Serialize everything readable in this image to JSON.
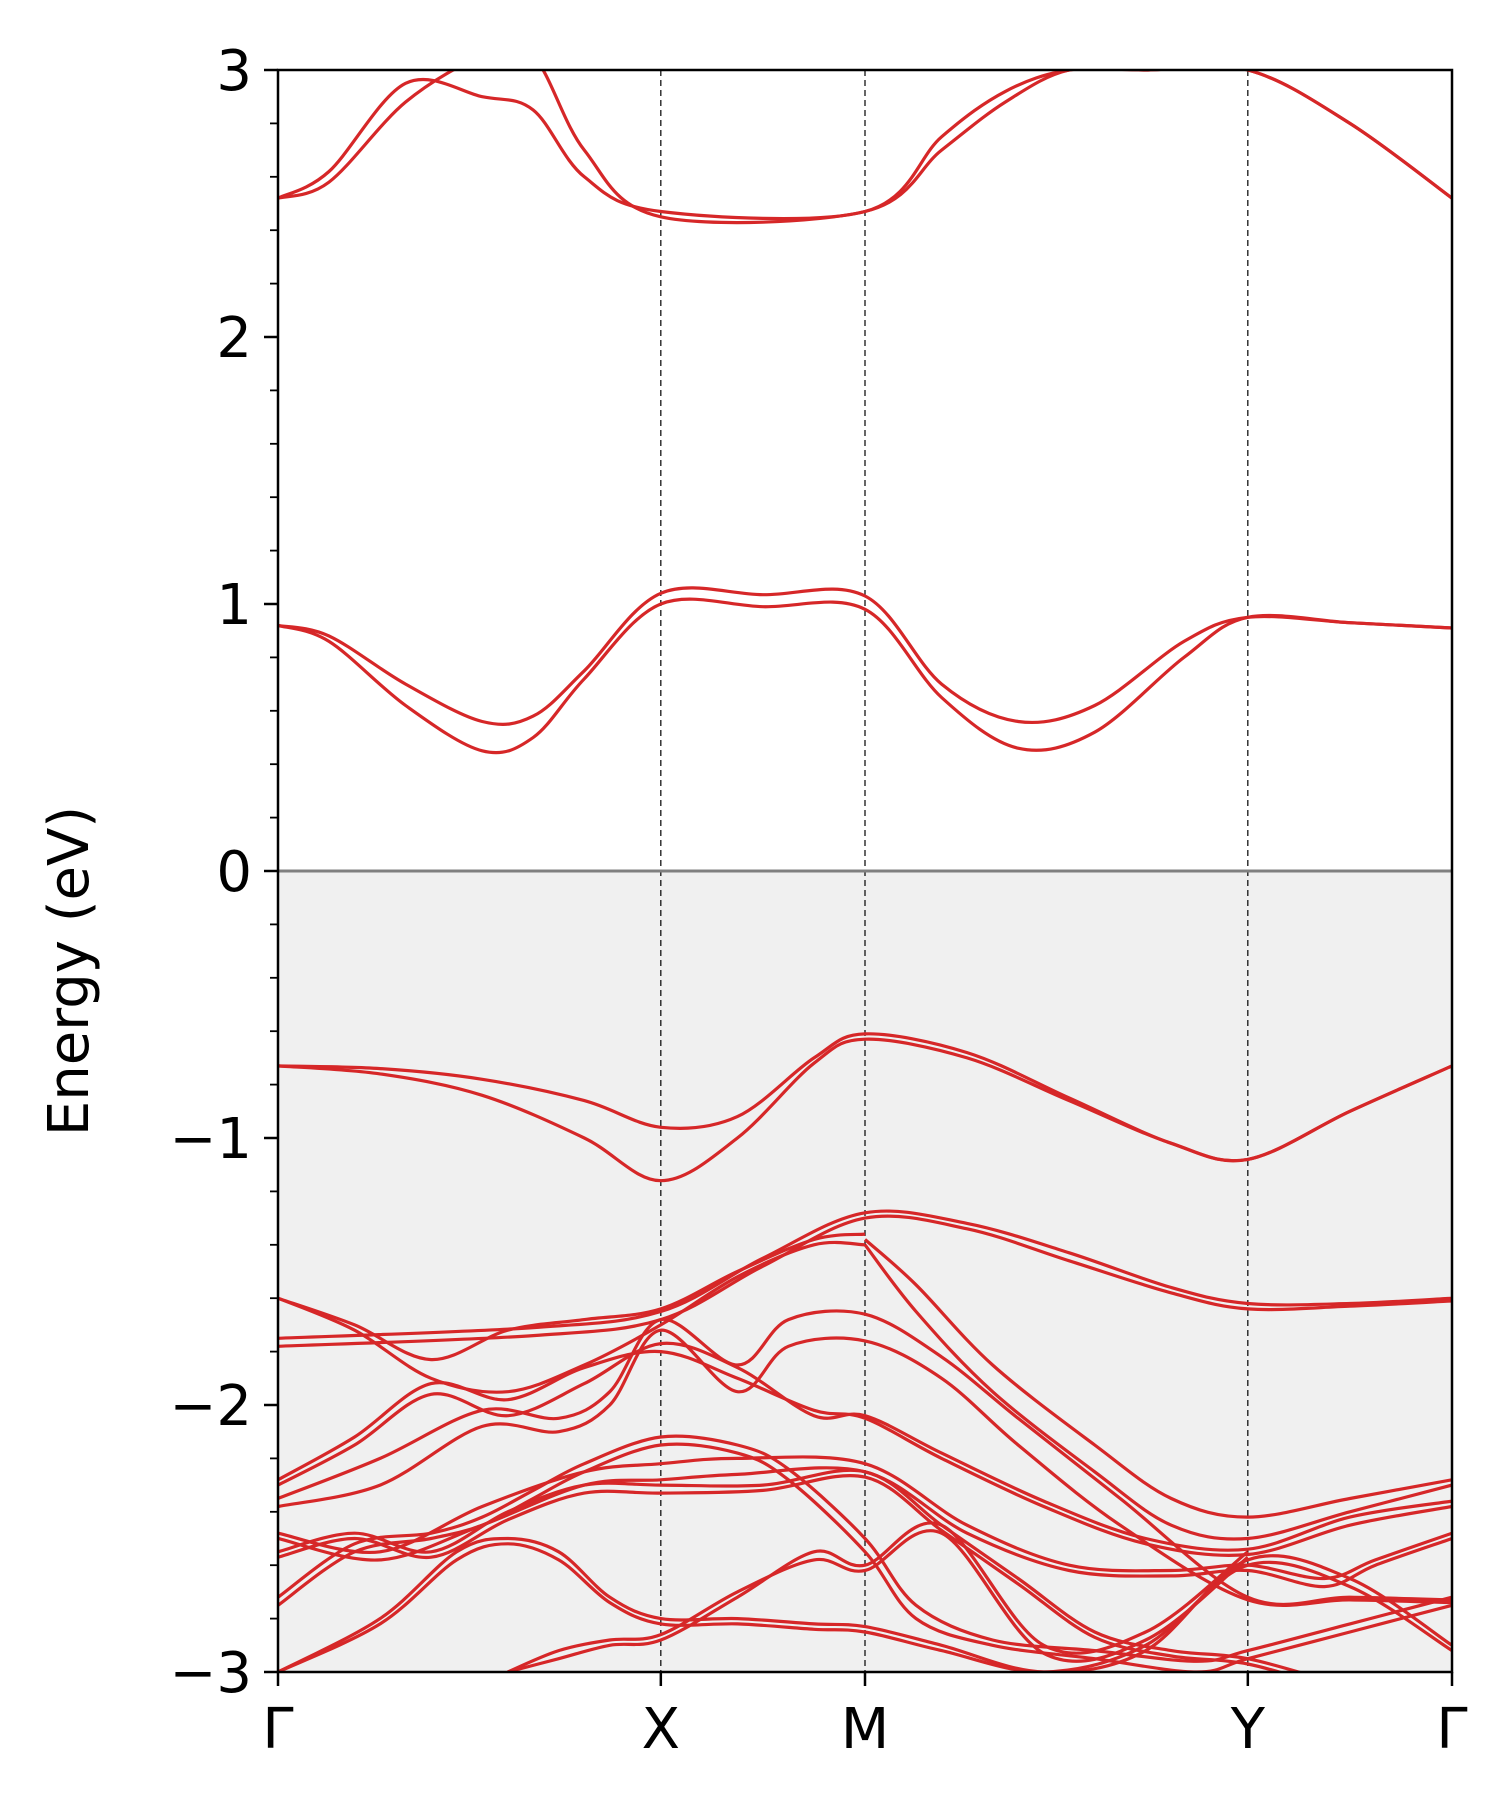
{
  "chart_data": {
    "type": "line",
    "title": "",
    "ylabel": "Energy (eV)",
    "xlabel": "",
    "ylim": [
      -3,
      3
    ],
    "xlim": [
      0,
      4.6
    ],
    "yticks": [
      -3,
      -2,
      -1,
      0,
      1,
      2,
      3
    ],
    "ytick_labels": [
      "−3",
      "−2",
      "−1",
      "0",
      "1",
      "2",
      "3"
    ],
    "yminor_step": 0.2,
    "high_symmetry_points": [
      {
        "label": "Γ",
        "x": 0
      },
      {
        "label": "X",
        "x": 1.5
      },
      {
        "label": "M",
        "x": 2.3
      },
      {
        "label": "Y",
        "x": 3.8
      },
      {
        "label": "Γ",
        "x": 4.6
      }
    ],
    "fermi_level": 0,
    "grid": false,
    "legend": "none",
    "colors": {
      "bands": "#d62728",
      "fermi_line": "#808080",
      "occupied_shade": "#f0f0f0",
      "kpath_lines": "#000000"
    },
    "series": [
      {
        "x": [
          0,
          0.2,
          0.5,
          0.8,
          1.0,
          1.2,
          1.5,
          2.3,
          2.6,
          2.85,
          3.1,
          3.4,
          3.8,
          4.2,
          4.6
        ],
        "y": [
          2.52,
          2.62,
          2.95,
          2.9,
          2.85,
          2.6,
          2.47,
          2.47,
          2.75,
          2.92,
          3.0,
          3.0,
          3.0,
          2.8,
          2.52
        ]
      },
      {
        "x": [
          0,
          0.2,
          0.5,
          0.8,
          1.0,
          1.2,
          1.5,
          2.3,
          2.6,
          2.85,
          3.1,
          3.4,
          3.8,
          4.2,
          4.6
        ],
        "y": [
          2.52,
          2.58,
          2.88,
          3.05,
          3.05,
          2.7,
          2.45,
          2.47,
          2.7,
          2.88,
          3.0,
          3.0,
          3.0,
          2.8,
          2.52
        ]
      },
      {
        "x": [
          0,
          0.2,
          0.5,
          0.8,
          1.0,
          1.2,
          1.5,
          1.9,
          2.3,
          2.6,
          2.9,
          3.2,
          3.55,
          3.8,
          4.2,
          4.6
        ],
        "y": [
          0.92,
          0.86,
          0.62,
          0.45,
          0.5,
          0.72,
          1.0,
          0.99,
          0.98,
          0.65,
          0.46,
          0.52,
          0.8,
          0.95,
          0.93,
          0.91
        ]
      },
      {
        "x": [
          0,
          0.2,
          0.5,
          0.8,
          1.0,
          1.2,
          1.5,
          1.9,
          2.3,
          2.6,
          2.9,
          3.2,
          3.55,
          3.8,
          4.2,
          4.6
        ],
        "y": [
          0.92,
          0.88,
          0.7,
          0.56,
          0.58,
          0.75,
          1.04,
          1.035,
          1.03,
          0.7,
          0.56,
          0.62,
          0.86,
          0.95,
          0.93,
          0.91
        ]
      },
      {
        "x": [
          0,
          0.4,
          0.8,
          1.2,
          1.5,
          1.8,
          2.1,
          2.3,
          2.7,
          3.1,
          3.5,
          3.8,
          4.2,
          4.6
        ],
        "y": [
          -0.73,
          -0.74,
          -0.78,
          -0.86,
          -0.96,
          -0.92,
          -0.7,
          -0.61,
          -0.68,
          -0.85,
          -1.02,
          -1.08,
          -0.9,
          -0.73
        ]
      },
      {
        "x": [
          0,
          0.4,
          0.8,
          1.2,
          1.5,
          1.8,
          2.1,
          2.3,
          2.7,
          3.1,
          3.5,
          3.8,
          4.2,
          4.6
        ],
        "y": [
          -0.73,
          -0.76,
          -0.84,
          -1.0,
          -1.16,
          -1.0,
          -0.72,
          -0.63,
          -0.7,
          -0.86,
          -1.02,
          -1.08,
          -0.9,
          -0.73
        ]
      },
      {
        "x": [
          0,
          1.0,
          1.5,
          1.9,
          2.3,
          2.7,
          3.1,
          3.5,
          3.8,
          4.2,
          4.6
        ],
        "y": [
          -1.75,
          -1.71,
          -1.65,
          -1.45,
          -1.28,
          -1.32,
          -1.43,
          -1.56,
          -1.62,
          -1.62,
          -1.6
        ]
      },
      {
        "x": [
          0,
          1.0,
          1.5,
          1.9,
          2.3,
          2.7,
          3.1,
          3.5,
          3.8,
          4.2,
          4.6
        ],
        "y": [
          -1.78,
          -1.74,
          -1.68,
          -1.48,
          -1.3,
          -1.34,
          -1.46,
          -1.58,
          -1.64,
          -1.63,
          -1.61
        ]
      },
      {
        "x": [
          0,
          0.3,
          0.6,
          0.9,
          1.2,
          1.5,
          1.8,
          2.1,
          2.3
        ],
        "y": [
          -1.6,
          -1.7,
          -1.83,
          -1.72,
          -1.68,
          -1.64,
          -1.5,
          -1.38,
          -1.36
        ]
      },
      {
        "x": [
          0,
          0.3,
          0.6,
          0.9,
          1.2,
          1.5,
          1.8,
          2.1,
          2.3
        ],
        "y": [
          -1.6,
          -1.72,
          -1.9,
          -1.95,
          -1.85,
          -1.7,
          -1.52,
          -1.4,
          -1.4
        ]
      },
      {
        "x": [
          2.3,
          2.5,
          2.8,
          3.2,
          3.5,
          3.8,
          4.2,
          4.6
        ],
        "y": [
          -1.38,
          -1.55,
          -1.85,
          -2.15,
          -2.35,
          -2.42,
          -2.35,
          -2.28
        ]
      },
      {
        "x": [
          2.3,
          2.5,
          2.8,
          3.2,
          3.5,
          3.8,
          4.2,
          4.6
        ],
        "y": [
          -1.4,
          -1.65,
          -1.95,
          -2.25,
          -2.45,
          -2.5,
          -2.4,
          -2.3
        ]
      },
      {
        "x": [
          0,
          0.3,
          0.6,
          0.9,
          1.2,
          1.5,
          1.8,
          2.1,
          2.3,
          2.6,
          3.0,
          3.4,
          3.8,
          4.2,
          4.6
        ],
        "y": [
          -2.28,
          -2.12,
          -1.92,
          -1.98,
          -1.86,
          -1.8,
          -1.9,
          -2.02,
          -2.05,
          -2.2,
          -2.38,
          -2.52,
          -2.56,
          -2.45,
          -2.38
        ]
      },
      {
        "x": [
          0,
          0.3,
          0.6,
          0.9,
          1.2,
          1.5,
          1.8,
          2.1,
          2.3,
          2.6,
          3.0,
          3.4,
          3.8,
          4.2,
          4.6
        ],
        "y": [
          -2.3,
          -2.15,
          -1.96,
          -2.04,
          -1.92,
          -1.77,
          -1.86,
          -2.04,
          -2.04,
          -2.18,
          -2.36,
          -2.5,
          -2.54,
          -2.42,
          -2.36
        ]
      },
      {
        "x": [
          0,
          0.4,
          0.8,
          1.1,
          1.3,
          1.5,
          1.8,
          2.0,
          2.3,
          2.6,
          2.9,
          3.3,
          3.8,
          4.2,
          4.6
        ],
        "y": [
          -2.35,
          -2.2,
          -2.02,
          -2.05,
          -1.95,
          -1.68,
          -1.85,
          -1.68,
          -1.66,
          -1.82,
          -2.05,
          -2.35,
          -2.72,
          -2.72,
          -2.73
        ]
      },
      {
        "x": [
          0,
          0.4,
          0.8,
          1.1,
          1.3,
          1.5,
          1.8,
          2.0,
          2.3,
          2.6,
          2.9,
          3.3,
          3.8,
          4.2,
          4.6
        ],
        "y": [
          -2.38,
          -2.3,
          -2.08,
          -2.1,
          -2.0,
          -1.72,
          -1.95,
          -1.78,
          -1.76,
          -1.9,
          -2.15,
          -2.45,
          -2.73,
          -2.73,
          -2.74
        ]
      },
      {
        "x": [
          0,
          0.4,
          0.8,
          1.2,
          1.5,
          1.8,
          2.3,
          2.7,
          3.1,
          3.5,
          3.8,
          4.1,
          4.3,
          4.6
        ],
        "y": [
          -2.48,
          -2.55,
          -2.38,
          -2.25,
          -2.22,
          -2.2,
          -2.22,
          -2.45,
          -2.6,
          -2.62,
          -2.6,
          -2.65,
          -2.58,
          -2.48
        ]
      },
      {
        "x": [
          0,
          0.4,
          0.8,
          1.2,
          1.5,
          1.8,
          2.3,
          2.7,
          3.1,
          3.5,
          3.8,
          4.1,
          4.3,
          4.6
        ],
        "y": [
          -2.5,
          -2.58,
          -2.45,
          -2.3,
          -2.28,
          -2.26,
          -2.25,
          -2.48,
          -2.62,
          -2.64,
          -2.62,
          -2.68,
          -2.6,
          -2.5
        ]
      },
      {
        "x": [
          0,
          0.3,
          0.6,
          0.8,
          1.0,
          1.2,
          1.5,
          1.8,
          2.0,
          2.3,
          2.5,
          2.8,
          3.2,
          3.6,
          3.8,
          4.2,
          4.6
        ],
        "y": [
          -2.75,
          -2.55,
          -2.5,
          -2.45,
          -2.35,
          -2.25,
          -2.15,
          -2.18,
          -2.28,
          -2.55,
          -2.8,
          -2.9,
          -2.95,
          -3.0,
          -2.95,
          -2.85,
          -2.75
        ]
      },
      {
        "x": [
          0,
          0.3,
          0.6,
          0.8,
          1.0,
          1.2,
          1.5,
          1.8,
          2.0,
          2.3,
          2.5,
          2.8,
          3.2,
          3.6,
          3.8,
          4.2,
          4.6
        ],
        "y": [
          -2.72,
          -2.52,
          -2.48,
          -2.42,
          -2.32,
          -2.22,
          -2.12,
          -2.15,
          -2.24,
          -2.5,
          -2.75,
          -2.88,
          -2.92,
          -2.96,
          -2.92,
          -2.82,
          -2.72
        ]
      },
      {
        "x": [
          0,
          0.4,
          0.7,
          0.9,
          1.1,
          1.3,
          1.5,
          1.8,
          2.1,
          2.3,
          2.6,
          3.0,
          3.4,
          3.8,
          4.2,
          4.6
        ],
        "y": [
          -3.0,
          -2.8,
          -2.55,
          -2.5,
          -2.55,
          -2.72,
          -2.8,
          -2.8,
          -2.82,
          -2.83,
          -2.9,
          -3.0,
          -2.92,
          -2.58,
          -2.65,
          -2.9
        ]
      },
      {
        "x": [
          0,
          0.4,
          0.7,
          0.9,
          1.1,
          1.3,
          1.5,
          1.8,
          2.1,
          2.3,
          2.6,
          3.0,
          3.4,
          3.8,
          4.2,
          4.6
        ],
        "y": [
          -3.0,
          -2.82,
          -2.58,
          -2.52,
          -2.58,
          -2.74,
          -2.82,
          -2.82,
          -2.84,
          -2.85,
          -2.92,
          -3.0,
          -2.9,
          -2.6,
          -2.68,
          -2.92
        ]
      },
      {
        "x": [
          0.9,
          1.1,
          1.3,
          1.5,
          1.8,
          2.1,
          2.3,
          2.6,
          3.0,
          3.4,
          3.8
        ],
        "y": [
          -3.0,
          -2.95,
          -2.9,
          -2.88,
          -2.72,
          -2.55,
          -2.6,
          -2.45,
          -2.9,
          -2.85,
          -2.55
        ]
      },
      {
        "x": [
          0.9,
          1.1,
          1.3,
          1.5,
          1.8,
          2.1,
          2.3,
          2.6,
          3.0,
          3.4,
          3.8
        ],
        "y": [
          -3.0,
          -2.92,
          -2.88,
          -2.86,
          -2.7,
          -2.58,
          -2.62,
          -2.48,
          -2.93,
          -2.88,
          -2.57
        ]
      },
      {
        "x": [
          0,
          0.3,
          0.6,
          0.9,
          1.2,
          1.5,
          1.9,
          2.3,
          2.6,
          2.9,
          3.2,
          3.5,
          3.8,
          4.2,
          4.6
        ],
        "y": [
          -2.55,
          -2.48,
          -2.55,
          -2.4,
          -2.3,
          -2.3,
          -2.3,
          -2.25,
          -2.45,
          -2.65,
          -2.85,
          -2.92,
          -2.95,
          -3.05,
          -3.1
        ]
      },
      {
        "x": [
          0,
          0.3,
          0.6,
          0.9,
          1.2,
          1.5,
          1.9,
          2.3,
          2.6,
          2.9,
          3.2,
          3.5,
          3.8,
          4.2,
          4.6
        ],
        "y": [
          -2.57,
          -2.5,
          -2.57,
          -2.43,
          -2.33,
          -2.33,
          -2.32,
          -2.27,
          -2.47,
          -2.67,
          -2.87,
          -2.94,
          -2.97,
          -3.07,
          -3.1
        ]
      }
    ]
  }
}
